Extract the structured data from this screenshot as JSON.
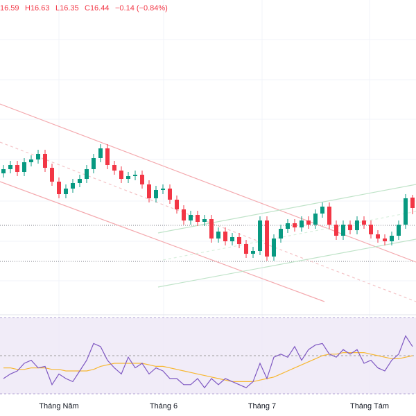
{
  "chart_data": {
    "type": "candlestick",
    "legend": {
      "open": "16.59",
      "high": "H16.63",
      "low": "L16.35",
      "close": "C16.44",
      "change": "−0.14 (−0.84%)"
    },
    "x_labels": [
      "Tháng Năm",
      "Tháng 6",
      "Tháng 7",
      "Tháng Tám"
    ],
    "up_color": "#089981",
    "down_color": "#f23645",
    "ylim": [
      14.89,
      19.44
    ],
    "open": [
      16.94,
      17.0,
      17.06,
      16.96,
      17.1,
      17.14,
      17.22,
      17.02,
      16.82,
      16.64,
      16.72,
      16.8,
      16.86,
      17.0,
      17.16,
      17.3,
      17.06,
      16.98,
      16.86,
      16.9,
      16.92,
      16.78,
      16.58,
      16.7,
      16.72,
      16.56,
      16.42,
      16.26,
      16.34,
      16.24,
      16.28,
      16.0,
      16.1,
      15.96,
      16.02,
      15.92,
      15.78,
      15.82,
      16.26,
      15.74,
      16.0,
      16.14,
      16.22,
      16.16,
      16.26,
      16.2,
      16.36,
      16.46,
      16.2,
      16.04,
      16.2,
      16.12,
      16.26,
      16.2,
      16.06,
      16.0,
      15.96,
      16.04,
      16.2,
      16.59
    ],
    "high": [
      17.06,
      17.12,
      17.12,
      17.16,
      17.2,
      17.28,
      17.28,
      17.08,
      16.88,
      16.78,
      16.86,
      16.92,
      17.06,
      17.22,
      17.36,
      17.36,
      17.12,
      17.04,
      16.96,
      16.98,
      16.98,
      16.84,
      16.76,
      16.78,
      16.78,
      16.62,
      16.48,
      16.4,
      16.4,
      16.34,
      16.34,
      16.16,
      16.16,
      16.08,
      16.08,
      15.98,
      15.88,
      16.32,
      16.32,
      16.06,
      16.2,
      16.28,
      16.28,
      16.32,
      16.32,
      16.42,
      16.52,
      16.52,
      16.26,
      16.26,
      16.26,
      16.32,
      16.32,
      16.26,
      16.12,
      16.06,
      16.1,
      16.26,
      16.64,
      16.63
    ],
    "low": [
      16.88,
      16.94,
      16.9,
      16.9,
      17.04,
      17.08,
      16.96,
      16.76,
      16.58,
      16.58,
      16.66,
      16.74,
      16.8,
      16.94,
      17.1,
      17.0,
      16.92,
      16.8,
      16.8,
      16.84,
      16.72,
      16.52,
      16.52,
      16.64,
      16.5,
      16.36,
      16.2,
      16.2,
      16.18,
      16.18,
      15.94,
      15.94,
      15.9,
      15.9,
      15.86,
      15.72,
      15.72,
      15.76,
      15.68,
      15.68,
      15.94,
      16.08,
      16.1,
      16.1,
      16.14,
      16.14,
      16.3,
      16.14,
      15.98,
      15.98,
      16.06,
      16.06,
      16.14,
      16.0,
      15.94,
      15.9,
      15.9,
      15.98,
      16.14,
      16.35
    ],
    "close": [
      17.0,
      17.06,
      16.96,
      17.1,
      17.14,
      17.22,
      17.02,
      16.82,
      16.64,
      16.72,
      16.8,
      16.86,
      17.0,
      17.16,
      17.3,
      17.06,
      16.98,
      16.86,
      16.9,
      16.92,
      16.78,
      16.58,
      16.7,
      16.72,
      16.56,
      16.42,
      16.26,
      16.34,
      16.24,
      16.28,
      16.0,
      16.1,
      15.96,
      16.02,
      15.92,
      15.78,
      15.82,
      16.26,
      15.74,
      16.0,
      16.14,
      16.22,
      16.16,
      16.26,
      16.2,
      16.36,
      16.46,
      16.2,
      16.04,
      16.2,
      16.12,
      16.26,
      16.2,
      16.06,
      16.0,
      15.96,
      16.04,
      16.2,
      16.58,
      16.44
    ],
    "rsi": {
      "ylim": [
        25,
        75
      ],
      "color": "#7e57c2",
      "ma_color": "#f7b731",
      "values": [
        35,
        38,
        40,
        45,
        47,
        42,
        43,
        31,
        38,
        35,
        33,
        40,
        47,
        58,
        56,
        47,
        42,
        38,
        49,
        42,
        45,
        38,
        42,
        40,
        35,
        35,
        31,
        31,
        35,
        29,
        35,
        31,
        35,
        33,
        31,
        29,
        33,
        45,
        35,
        49,
        51,
        49,
        56,
        47,
        54,
        57,
        58,
        51,
        49,
        54,
        51,
        54,
        45,
        47,
        42,
        40,
        47,
        51,
        63,
        56
      ],
      "ma": [
        42,
        42,
        41,
        41,
        42,
        42,
        42,
        41,
        41,
        40,
        40,
        40,
        40,
        41,
        43,
        44,
        45,
        45,
        45,
        45,
        45,
        44,
        43,
        43,
        42,
        41,
        40,
        39,
        38,
        37,
        36,
        35,
        34,
        33,
        33,
        33,
        33,
        34,
        35,
        36,
        38,
        40,
        42,
        44,
        46,
        48,
        50,
        51,
        51,
        52,
        52,
        52,
        52,
        51,
        50,
        49,
        48,
        48,
        49,
        50
      ]
    }
  }
}
